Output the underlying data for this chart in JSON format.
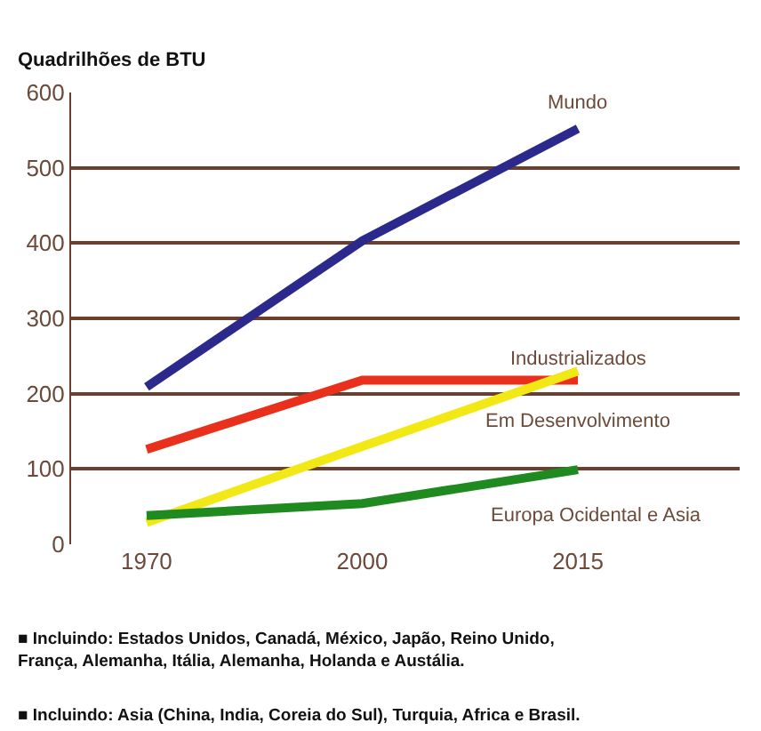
{
  "chart_data": {
    "type": "line",
    "ylabel": "Quadrilhões de BTU",
    "categories": [
      "1970",
      "2000",
      "2015"
    ],
    "series": [
      {
        "name": "Mundo",
        "color": "#2b2a8c",
        "values": [
          209,
          403,
          552
        ]
      },
      {
        "name": "Industrializados",
        "color": "#e8301c",
        "values": [
          126,
          218,
          218
        ]
      },
      {
        "name": "Em Desenvolvimento",
        "color": "#f2e816",
        "values": [
          29,
          130,
          230
        ]
      },
      {
        "name": "Europa Ocidental e Asia",
        "color": "#1f8a1f",
        "values": [
          38,
          54,
          99
        ]
      }
    ],
    "ylim": [
      0,
      600
    ],
    "yticks": [
      0,
      100,
      200,
      300,
      400,
      500,
      600
    ],
    "grid": "y",
    "legend": false,
    "marker": "none",
    "line_style": "solid",
    "annotations": [
      "■ Incluindo: Estados Unidos, Canadá, México, Japão, Reino Unido,\nFrança, Alemanha, Itália, Alemanha, Holanda e Austália.",
      "■ Incluindo: Asia (China, India, Coreia do Sul), Turquia, Africa e Brasil."
    ]
  }
}
